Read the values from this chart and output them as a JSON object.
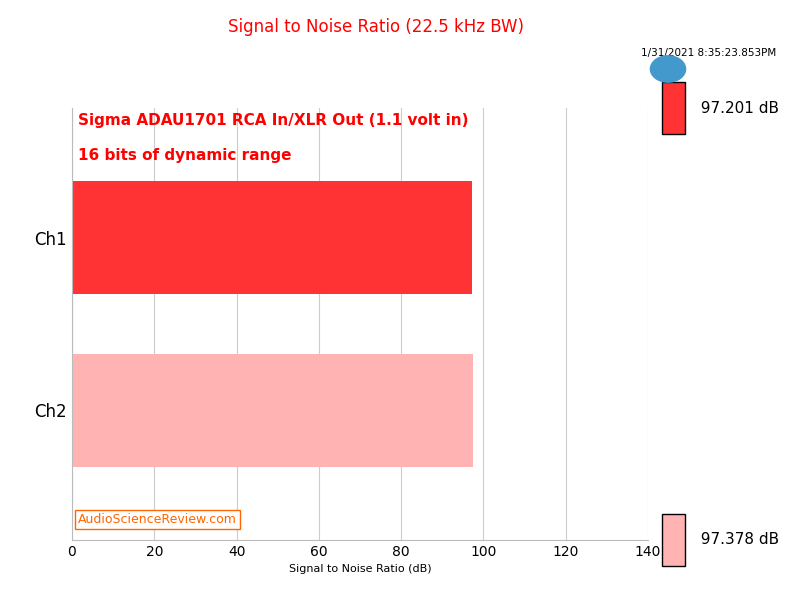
{
  "title": "Signal to Noise Ratio (22.5 kHz BW)",
  "subtitle_line1": "Sigma ADAU1701 RCA In/XLR Out (1.1 volt in)",
  "subtitle_line2": "16 bits of dynamic range",
  "timestamp": "1/31/2021 8:35:23.853PM",
  "xlabel": "Signal to Noise Ratio (dB)",
  "categories": [
    "Ch2",
    "Ch1"
  ],
  "values": [
    97.378,
    97.201
  ],
  "bar_colors": [
    "#FFB3B3",
    "#FF3333"
  ],
  "legend_colors": [
    "#FF3333",
    "#FFB3B3"
  ],
  "legend_labels": [
    "97.201 dB",
    "97.378 dB"
  ],
  "xlim": [
    0,
    140
  ],
  "xticks": [
    0,
    20,
    40,
    60,
    80,
    100,
    120,
    140
  ],
  "watermark": "AudioScienceReview.com",
  "title_color": "#FF0000",
  "subtitle_color": "#FF0000",
  "watermark_color": "#FF6600",
  "timestamp_color": "#000000",
  "background_color": "#FFFFFF",
  "grid_color": "#CCCCCC",
  "bar_height": 0.65,
  "fig_width": 8.0,
  "fig_height": 6.0,
  "dpi": 100
}
